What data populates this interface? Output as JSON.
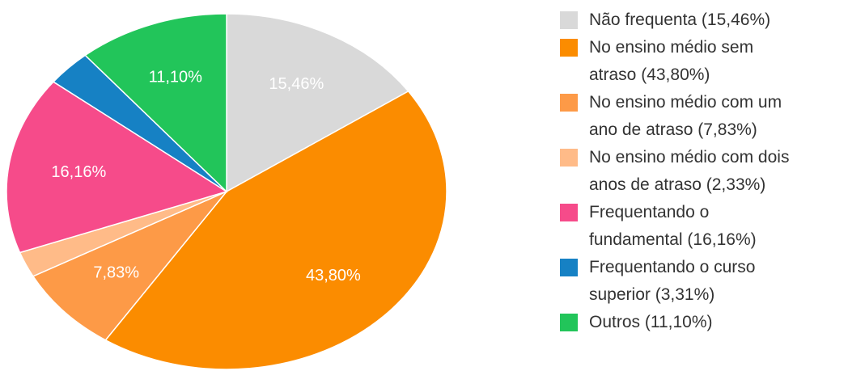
{
  "chart_data": {
    "type": "pie",
    "categories": [
      "Não frequenta (15,46%)",
      "No ensino médio sem\natraso (43,80%)",
      "No ensino médio com um\nano de atraso (7,83%)",
      "No ensino médio com dois\nanos de atraso (2,33%)",
      "Frequentando o\nfundamental (16,16%)",
      "Frequentando o curso\nsuperior (3,31%)",
      "Outros (11,10%)"
    ],
    "values": [
      15.46,
      43.8,
      7.83,
      2.33,
      16.16,
      3.31,
      11.1
    ],
    "value_labels": [
      "15,46%",
      "43,80%",
      "7,83%",
      null,
      "16,16%",
      null,
      "11,10%"
    ],
    "colors": [
      "#d9d9d9",
      "#fb8c00",
      "#fd9a47",
      "#ffbb88",
      "#f64b8a",
      "#1681c4",
      "#22c55a"
    ],
    "legend": "right"
  }
}
